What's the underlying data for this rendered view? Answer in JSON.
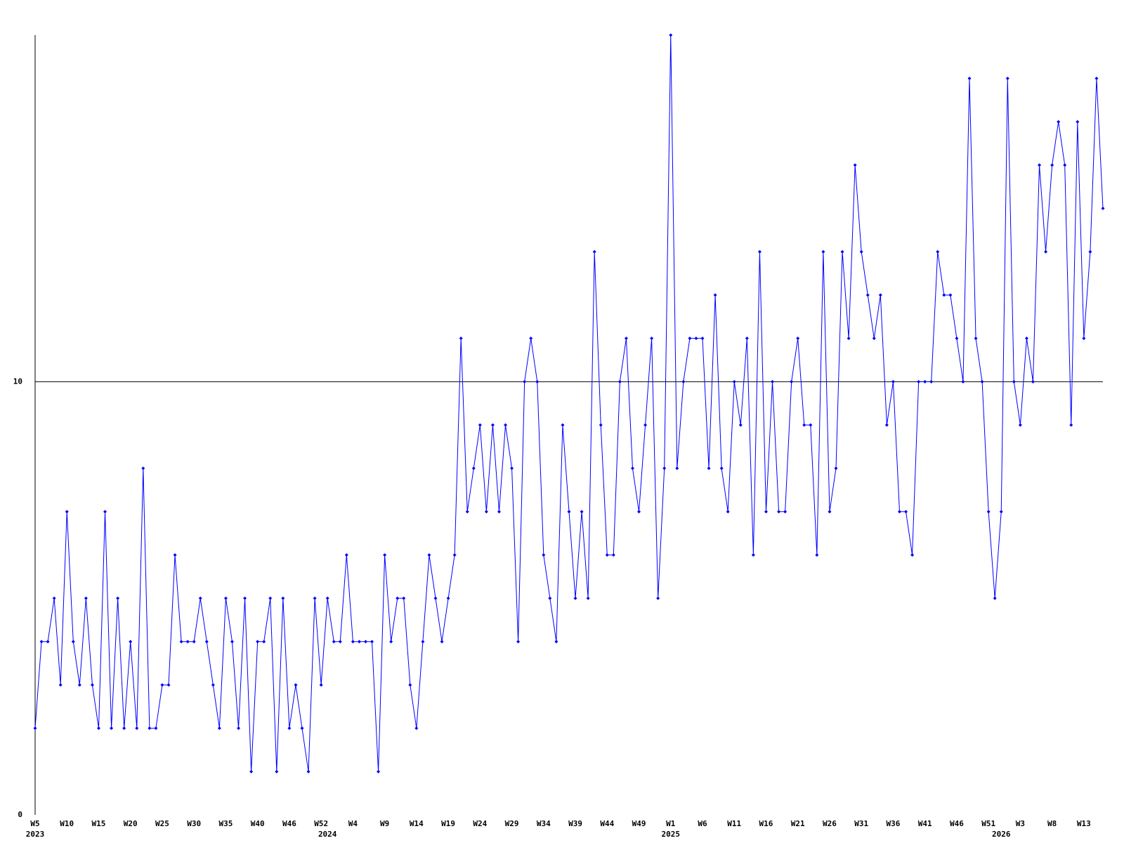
{
  "chart_data": {
    "type": "line",
    "color": "#0000ff",
    "categories": [
      "W5",
      null,
      null,
      null,
      null,
      "W10",
      null,
      null,
      null,
      null,
      "W15",
      null,
      null,
      null,
      null,
      "W20",
      null,
      null,
      null,
      null,
      "W25",
      null,
      null,
      null,
      null,
      "W30",
      null,
      null,
      null,
      null,
      "W35",
      null,
      null,
      null,
      null,
      "W40",
      null,
      null,
      null,
      null,
      "W46",
      null,
      null,
      null,
      null,
      "W52",
      null,
      null,
      null,
      null,
      "W4",
      null,
      null,
      null,
      null,
      "W9",
      null,
      null,
      null,
      null,
      "W14",
      null,
      null,
      null,
      null,
      "W19",
      null,
      null,
      null,
      null,
      "W24",
      null,
      null,
      null,
      null,
      "W29",
      null,
      null,
      null,
      null,
      "W34",
      null,
      null,
      null,
      null,
      "W39",
      null,
      null,
      null,
      null,
      "W44",
      null,
      null,
      null,
      null,
      "W49",
      null,
      null,
      null,
      null,
      "W1",
      null,
      null,
      null,
      null,
      "W6",
      null,
      null,
      null,
      null,
      "W11",
      null,
      null,
      null,
      null,
      "W16",
      null,
      null,
      null,
      null,
      "W21",
      null,
      null,
      null,
      null,
      "W26",
      null,
      null,
      null,
      null,
      "W31",
      null,
      null,
      null,
      null,
      "W36",
      null,
      null,
      null,
      null,
      "W41",
      null,
      null,
      null,
      null,
      "W46",
      null,
      null,
      null,
      null,
      "W51",
      null,
      null,
      null,
      null,
      "W3",
      null,
      null,
      null,
      null,
      "W8",
      null,
      null,
      null,
      null,
      "W13",
      null,
      null,
      null
    ],
    "year_labels": [
      "2023",
      null,
      null,
      null,
      null,
      null,
      null,
      null,
      null,
      null,
      null,
      null,
      null,
      null,
      null,
      null,
      null,
      null,
      null,
      null,
      null,
      null,
      null,
      null,
      null,
      null,
      null,
      null,
      null,
      null,
      null,
      null,
      null,
      null,
      null,
      null,
      null,
      null,
      null,
      null,
      null,
      null,
      null,
      null,
      null,
      null,
      "2024",
      null,
      null,
      null,
      null,
      null,
      null,
      null,
      null,
      null,
      null,
      null,
      null,
      null,
      null,
      null,
      null,
      null,
      null,
      null,
      null,
      null,
      null,
      null,
      null,
      null,
      null,
      null,
      null,
      null,
      null,
      null,
      null,
      null,
      null,
      null,
      null,
      null,
      null,
      null,
      null,
      null,
      null,
      null,
      null,
      null,
      null,
      null,
      null,
      null,
      null,
      null,
      null,
      null,
      "2025",
      null,
      null,
      null,
      null,
      null,
      null,
      null,
      null,
      null,
      null,
      null,
      null,
      null,
      null,
      null,
      null,
      null,
      null,
      null,
      null,
      null,
      null,
      null,
      null,
      null,
      null,
      null,
      null,
      null,
      null,
      null,
      null,
      null,
      null,
      null,
      null,
      null,
      null,
      null,
      null,
      null,
      null,
      null,
      null,
      null,
      null,
      null,
      null,
      null,
      null,
      null,
      "2026",
      null,
      null,
      null,
      null,
      null,
      null,
      null,
      null,
      null,
      null,
      null,
      null,
      null,
      null,
      null,
      null
    ],
    "values": [
      2,
      4,
      4,
      5,
      3,
      7,
      4,
      3,
      5,
      3,
      2,
      7,
      2,
      5,
      2,
      4,
      2,
      8,
      2,
      2,
      3,
      3,
      6,
      4,
      4,
      4,
      5,
      4,
      3,
      2,
      5,
      4,
      2,
      5,
      1,
      4,
      4,
      5,
      1,
      5,
      2,
      3,
      2,
      1,
      5,
      3,
      5,
      4,
      4,
      6,
      4,
      4,
      4,
      4,
      1,
      6,
      4,
      5,
      5,
      3,
      2,
      4,
      6,
      5,
      4,
      5,
      6,
      11,
      7,
      8,
      9,
      7,
      9,
      7,
      9,
      8,
      4,
      10,
      11,
      10,
      6,
      5,
      4,
      9,
      7,
      5,
      7,
      5,
      13,
      9,
      6,
      6,
      10,
      11,
      8,
      7,
      9,
      11,
      5,
      8,
      18,
      8,
      10,
      11,
      11,
      11,
      8,
      12,
      8,
      7,
      10,
      9,
      11,
      6,
      13,
      7,
      10,
      7,
      7,
      10,
      11,
      9,
      9,
      6,
      13,
      7,
      8,
      13,
      11,
      15,
      13,
      12,
      11,
      12,
      9,
      10,
      7,
      7,
      6,
      10,
      10,
      10,
      13,
      12,
      12,
      11,
      10,
      17,
      11,
      10,
      7,
      5,
      7,
      17,
      10,
      9,
      11,
      10,
      15,
      13,
      15,
      16,
      15,
      9,
      16,
      11,
      13,
      17,
      14
    ],
    "ylim": [
      0,
      18
    ],
    "yticks": [
      0,
      10
    ],
    "grid": true
  }
}
